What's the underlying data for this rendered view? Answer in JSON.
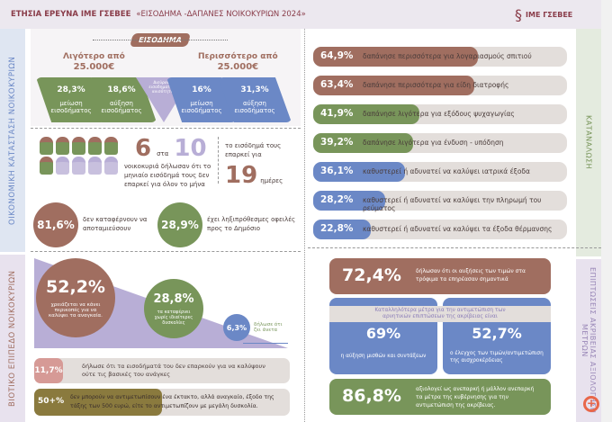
{
  "header": {
    "title_left": "ΕΤΗΣΙΑ ΕΡΕΥΝΑ ΙΜΕ ΓΣΕΒΕΕ",
    "title_right": "«ΕΙΣΟΔΗΜΑ -ΔΑΠΑΝΕΣ ΝΟΙΚΟΚΥΡΙΩΝ 2024»",
    "logo": "ΙΜΕ ΓΣΕΒΕΕ"
  },
  "sections": {
    "left_top": "ΟΙΚΟΝΟΜΙΚΗ ΚΑΤΑΣΤΑΣΗ ΝΟΙΚΟΚΥΡΙΩΝ",
    "left_bottom": "ΒΙΟΤΙΚΟ ΕΠΙΠΕΔΟ ΝΟΙΚΟΚΥΡΙΩΝ",
    "right_top": "ΚΑΤΑΝΑΛΩΣΗ",
    "right_bottom": "ΕΠΙΠΤΩΣΕΙΣ ΑΚΡΙΒΕΙΑΣ ΑΞΙΟΛΟΓΗΣΗ ΜΕΤΡΩΝ"
  },
  "income": {
    "title": "ΕΙΣΟΔΗΜΑ",
    "less_label": "Λιγότερο από",
    "less_value": "25.000€",
    "more_label": "Περισσότερο από",
    "more_value": "25.000€",
    "cards": [
      {
        "pct": "28,3%",
        "text": "μείωση εισοδήματος"
      },
      {
        "pct": "18,6%",
        "text": "αύξηση εισοδήματος"
      },
      {
        "pct": "16%",
        "text": "μείωση εισοδήματος"
      },
      {
        "pct": "31,3%",
        "text": "αύξηση εισοδήματος"
      }
    ],
    "center": "Διεύρυνση εισοδηματικής ανισότητας"
  },
  "households": {
    "num": "6",
    "sta": "στα",
    "den": "10",
    "text": "νοικοκυριά δήλωσαν ότι το μηνιαίο εισόδημά τους δεν επαρκεί για όλον το μήνα",
    "days_text": "το εισόδημά τους επαρκεί για",
    "days": "19",
    "days_unit": "ημέρες"
  },
  "stats": [
    {
      "pct": "81,6%",
      "text": "δεν καταφέρνουν να αποταμιεύσουν"
    },
    {
      "pct": "28,9%",
      "text": "έχει ληξιπρόθεσμες οφειλές προς το Δημόσιο"
    }
  ],
  "living": {
    "big": {
      "pct": "52,2%",
      "text": "χρειάζεται να κάνει περικοπές για να καλύψει τα αναγκαία."
    },
    "mid": {
      "pct": "28,8%",
      "text": "τα καταφέρνει χωρίς ιδιαίτερες δυσκολίες"
    },
    "small": {
      "pct": "6,3%",
      "text": "δήλωσε ότι ζει άνετα"
    },
    "rows": [
      {
        "pct": "11,7%",
        "text": "δήλωσε ότι τα εισοδήματά του δεν επαρκούν για να καλύψουν ούτε τις βασικές του ανάγκες"
      },
      {
        "pct": "50+%",
        "text": "δεν μπορούν να αντιμετωπίσουν ένα έκτακτο, αλλά αναγκαίο, έξοδο της τάξης των 500 ευρώ, είτε το αντιμετωπίζουν με μεγάλη δυσκολία."
      }
    ]
  },
  "consumption": [
    {
      "pct": "64,9%",
      "value": 64.9,
      "color": "#a06e60",
      "text": "δαπάνησε περισσότερα για λογαριασμούς σπιτιού"
    },
    {
      "pct": "63,4%",
      "value": 63.4,
      "color": "#a06e60",
      "text": "δαπάνησε περισσότερα για είδη διατροφής"
    },
    {
      "pct": "41,9%",
      "value": 41.9,
      "color": "#78955a",
      "text": "δαπάνησε λιγότερα για εξόδους ψυχαγωγίας"
    },
    {
      "pct": "39,2%",
      "value": 39.2,
      "color": "#78955a",
      "text": "δαπάνησε λιγότερα για ένδυση - υπόδηση"
    },
    {
      "pct": "36,1%",
      "value": 36.1,
      "color": "#6b88c6",
      "text": "καθυστερεί ή αδυνατεί να καλύψει ιατρικά έξοδα"
    },
    {
      "pct": "28,2%",
      "value": 28.2,
      "color": "#6b88c6",
      "text": "καθυστερεί ή αδυνατεί να καλύψει την πληρωμή του ρεύματος"
    },
    {
      "pct": "22,8%",
      "value": 22.8,
      "color": "#6b88c6",
      "text": "καθυστερεί ή αδυνατεί να καλύψει τα έξοδα θέρμανσης"
    }
  ],
  "impact": {
    "top": {
      "pct": "72,4%",
      "text": "δήλωσαν ότι οι αυξήσεις των τιμών στα τρόφιμα τα επηρέασαν σημαντικά"
    },
    "measures_title": "Καταλληλότερα μέτρα για την αντιμετώπιση των αρνητικών επιπτώσεων της ακρίβειας είναι",
    "m1": {
      "pct": "69%",
      "text": "η αύξηση μισθών και συντάξεων"
    },
    "m2": {
      "pct": "52,7%",
      "text": "ο έλεγχος των τιμών/αντιμετώπιση της αισχροκέρδειας"
    },
    "bottom": {
      "pct": "86,8%",
      "text": "αξιολογεί ως ανεπαρκή ή μάλλον ανεπαρκή τα μέτρα της κυβέρνησης για την αντιμετώπιση της ακρίβειας."
    }
  }
}
